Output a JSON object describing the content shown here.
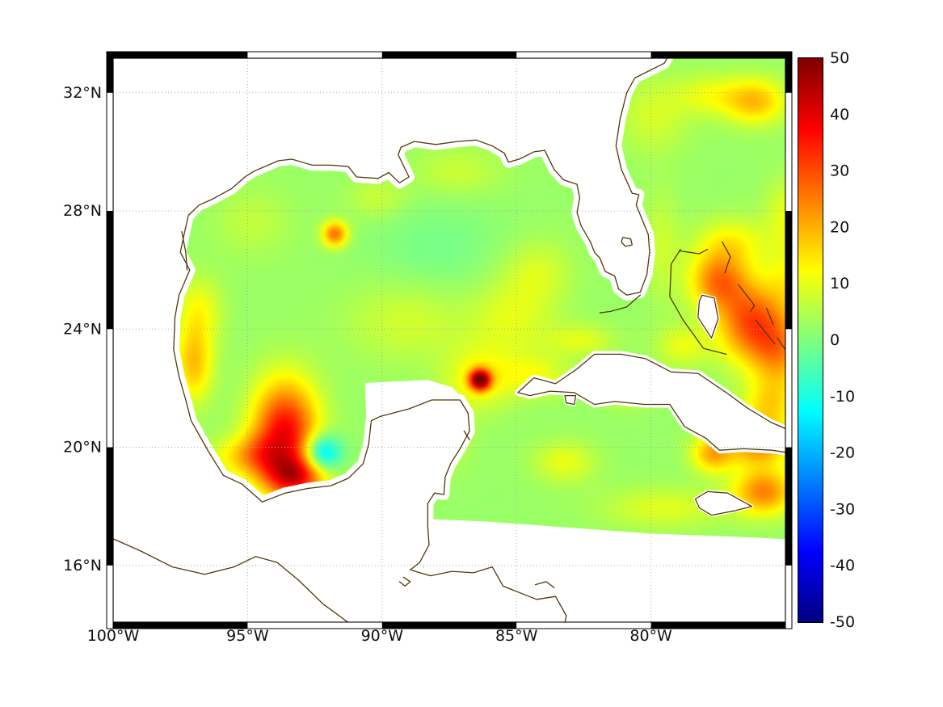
{
  "axes": {
    "x_ticks": [
      {
        "label": "100°W",
        "lon": -100
      },
      {
        "label": "95°W",
        "lon": -95
      },
      {
        "label": "90°W",
        "lon": -90
      },
      {
        "label": "85°W",
        "lon": -85
      },
      {
        "label": "80°W",
        "lon": -80
      }
    ],
    "y_ticks": [
      {
        "label": "32°N",
        "lat": 32
      },
      {
        "label": "28°N",
        "lat": 28
      },
      {
        "label": "24°N",
        "lat": 24
      },
      {
        "label": "20°N",
        "lat": 20
      },
      {
        "label": "16°N",
        "lat": 16
      }
    ]
  },
  "colorbar": {
    "vmin": -50,
    "vmax": 50,
    "tick_values": [
      50,
      40,
      30,
      20,
      10,
      0,
      -10,
      -20,
      -30,
      -40,
      -50
    ],
    "tick_labels": [
      "50",
      "40",
      "30",
      "20",
      "10",
      "0",
      "-10",
      "-20",
      "-30",
      "-40",
      "-50"
    ],
    "colormap": "jet",
    "position": "right"
  },
  "chart_data": {
    "type": "heatmap",
    "title": "",
    "xlabel": "",
    "ylabel": "",
    "projection": "linear lon/lat degrees",
    "lon_range": [
      -100,
      -75
    ],
    "lat_range": [
      14.08,
      33.17
    ],
    "x_tick_lons": [
      -100,
      -95,
      -90,
      -85,
      -80
    ],
    "y_tick_lats": [
      32,
      28,
      24,
      20,
      16
    ],
    "grid": "dotted",
    "vmin": -50,
    "vmax": 50,
    "base_value": 2.5,
    "features": [
      {
        "name": "campeche-warm-eddy",
        "lon": -93.6,
        "lat": 20.4,
        "sx": 0.85,
        "sy": 1.25,
        "amp": 36
      },
      {
        "name": "campeche-south-warm",
        "lon": -93.2,
        "lat": 18.95,
        "sx": 0.8,
        "sy": 0.5,
        "amp": 26
      },
      {
        "name": "campeche-west-warm",
        "lon": -94.6,
        "lat": 19.7,
        "sx": 0.6,
        "sy": 0.5,
        "amp": 12
      },
      {
        "name": "campeche-cold-patch",
        "lon": -92.25,
        "lat": 19.75,
        "sx": 0.5,
        "sy": 0.45,
        "amp": -24
      },
      {
        "name": "small-warm-eddy-nw-gulf",
        "lon": -91.75,
        "lat": 27.2,
        "sx": 0.33,
        "sy": 0.3,
        "amp": 24
      },
      {
        "name": "tamaulipas-coastal-warm",
        "lon": -97.0,
        "lat": 22.8,
        "sx": 0.5,
        "sy": 0.9,
        "amp": 16
      },
      {
        "name": "texas-coastal-warm",
        "lon": -96.8,
        "lat": 24.6,
        "sx": 0.6,
        "sy": 0.8,
        "amp": 9
      },
      {
        "name": "yucatan-channel-warm-core",
        "lon": -86.35,
        "lat": 22.25,
        "sx": 0.27,
        "sy": 0.24,
        "amp": 46
      },
      {
        "name": "yucatan-channel-warm-halo",
        "lon": -86.4,
        "lat": 22.3,
        "sx": 0.9,
        "sy": 0.75,
        "amp": 10
      },
      {
        "name": "mid-gulf-warm-band",
        "lon": -89.0,
        "lat": 24.3,
        "sx": 1.6,
        "sy": 1.0,
        "amp": 6
      },
      {
        "name": "loop-current-warm",
        "lon": -85.2,
        "lat": 24.3,
        "sx": 1.1,
        "sy": 1.0,
        "amp": 7
      },
      {
        "name": "west-florida-warm",
        "lon": -84.2,
        "lat": 25.9,
        "sx": 0.9,
        "sy": 0.8,
        "amp": 6
      },
      {
        "name": "central-gulf-cool",
        "lon": -88.0,
        "lat": 26.6,
        "sx": 1.8,
        "sy": 1.3,
        "amp": -3.5
      },
      {
        "name": "nw-shelf-warm",
        "lon": -94.8,
        "lat": 27.6,
        "sx": 1.0,
        "sy": 0.8,
        "amp": 4
      },
      {
        "name": "north-gulf-warm",
        "lon": -87.2,
        "lat": 29.3,
        "sx": 1.2,
        "sy": 0.6,
        "amp": 5
      },
      {
        "name": "louisiana-shelf-warm",
        "lon": -90.2,
        "lat": 28.4,
        "sx": 0.8,
        "sy": 0.5,
        "amp": 5
      },
      {
        "name": "bahamas-warm-1",
        "lon": -77.5,
        "lat": 25.6,
        "sx": 0.75,
        "sy": 0.7,
        "amp": 22
      },
      {
        "name": "bahamas-warm-2",
        "lon": -76.3,
        "lat": 24.2,
        "sx": 0.85,
        "sy": 0.95,
        "amp": 26
      },
      {
        "name": "bahamas-warm-3",
        "lon": -75.2,
        "lat": 23.2,
        "sx": 0.7,
        "sy": 0.9,
        "amp": 18
      },
      {
        "name": "nw-providence-warm",
        "lon": -77.0,
        "lat": 26.9,
        "sx": 0.9,
        "sy": 0.6,
        "amp": 10
      },
      {
        "name": "atlantic-ne-warm",
        "lon": -76.1,
        "lat": 31.7,
        "sx": 0.8,
        "sy": 0.55,
        "amp": 16
      },
      {
        "name": "atlantic-ne-warm-2",
        "lon": -77.8,
        "lat": 31.9,
        "sx": 0.9,
        "sy": 0.5,
        "amp": 8
      },
      {
        "name": "gulf-stream-warm",
        "lon": -79.9,
        "lat": 31.2,
        "sx": 0.9,
        "sy": 0.9,
        "amp": 6
      },
      {
        "name": "se-cuba-warm-1",
        "lon": -76.0,
        "lat": 20.1,
        "sx": 0.8,
        "sy": 0.55,
        "amp": 22
      },
      {
        "name": "se-cuba-warm-2",
        "lon": -77.7,
        "lat": 19.75,
        "sx": 0.55,
        "sy": 0.45,
        "amp": 18
      },
      {
        "name": "ne-cuba-warm",
        "lon": -75.6,
        "lat": 21.4,
        "sx": 0.7,
        "sy": 0.6,
        "amp": 12
      },
      {
        "name": "southeast-bottom-warm",
        "lon": -75.8,
        "lat": 18.45,
        "sx": 0.8,
        "sy": 0.55,
        "amp": 22
      },
      {
        "name": "south-cuba-warm",
        "lon": -80.9,
        "lat": 21.9,
        "sx": 0.6,
        "sy": 0.4,
        "amp": 8
      },
      {
        "name": "west-cuba-band",
        "lon": -84.3,
        "lat": 22.4,
        "sx": 0.9,
        "sy": 0.5,
        "amp": 8
      },
      {
        "name": "florida-straits-warm",
        "lon": -82.6,
        "lat": 23.6,
        "sx": 0.9,
        "sy": 0.4,
        "amp": 7
      },
      {
        "name": "gulf-stream-channel",
        "lon": -79.6,
        "lat": 26.8,
        "sx": 0.5,
        "sy": 1.3,
        "amp": 5
      },
      {
        "name": "cayman-warm",
        "lon": -83.2,
        "lat": 19.45,
        "sx": 0.8,
        "sy": 0.5,
        "amp": 8
      },
      {
        "name": "jamaica-band-warm",
        "lon": -79.5,
        "lat": 17.9,
        "sx": 1.6,
        "sy": 0.5,
        "amp": 7
      },
      {
        "name": "right-edge-warm",
        "lon": -74.9,
        "lat": 25.6,
        "sx": 0.6,
        "sy": 0.8,
        "amp": 8
      },
      {
        "name": "cay-sal-warm",
        "lon": -78.8,
        "lat": 23.4,
        "sx": 0.7,
        "sy": 0.5,
        "amp": 8
      },
      {
        "name": "yucatan-east-warm",
        "lon": -87.6,
        "lat": 20.4,
        "sx": 0.6,
        "sy": 0.8,
        "amp": 6
      },
      {
        "name": "campeche-sw-coast-warm",
        "lon": -95.6,
        "lat": 19.6,
        "sx": 0.7,
        "sy": 0.5,
        "amp": 8
      },
      {
        "name": "atlantic-right-edge-warm",
        "lon": -74.9,
        "lat": 27.8,
        "sx": 0.6,
        "sy": 0.9,
        "amp": 8
      }
    ]
  },
  "map": {
    "coast_color": "#53380a",
    "land_fill": "#ffffff",
    "grid_color": "#aaaaaa",
    "frame_color": "#000000",
    "background": "#ffffff",
    "mainland": [
      [
        -100.5,
        33.5
      ],
      [
        -79.2,
        33.5
      ],
      [
        -79.5,
        33.0
      ],
      [
        -80.6,
        32.5
      ],
      [
        -80.9,
        32.0
      ],
      [
        -81.15,
        31.1
      ],
      [
        -81.3,
        30.2
      ],
      [
        -81.1,
        29.4
      ],
      [
        -80.7,
        28.6
      ],
      [
        -80.45,
        28.55
      ],
      [
        -80.55,
        28.2
      ],
      [
        -80.1,
        27.2
      ],
      [
        -80.05,
        26.6
      ],
      [
        -80.15,
        25.85
      ],
      [
        -80.4,
        25.25
      ],
      [
        -80.9,
        25.15
      ],
      [
        -81.2,
        25.35
      ],
      [
        -81.35,
        25.8
      ],
      [
        -81.7,
        25.95
      ],
      [
        -81.9,
        26.4
      ],
      [
        -82.1,
        26.6
      ],
      [
        -82.25,
        26.95
      ],
      [
        -82.6,
        27.5
      ],
      [
        -82.75,
        27.95
      ],
      [
        -82.65,
        28.45
      ],
      [
        -82.75,
        28.9
      ],
      [
        -83.25,
        29.05
      ],
      [
        -83.6,
        29.4
      ],
      [
        -83.95,
        30.05
      ],
      [
        -84.35,
        30.0
      ],
      [
        -84.9,
        29.75
      ],
      [
        -85.3,
        29.65
      ],
      [
        -85.45,
        29.95
      ],
      [
        -85.9,
        30.2
      ],
      [
        -86.5,
        30.4
      ],
      [
        -87.2,
        30.35
      ],
      [
        -88.0,
        30.25
      ],
      [
        -88.8,
        30.35
      ],
      [
        -89.3,
        30.15
      ],
      [
        -89.4,
        29.9
      ],
      [
        -89.0,
        29.15
      ],
      [
        -89.35,
        28.95
      ],
      [
        -89.75,
        29.3
      ],
      [
        -90.15,
        29.1
      ],
      [
        -90.95,
        29.15
      ],
      [
        -91.25,
        29.5
      ],
      [
        -91.9,
        29.55
      ],
      [
        -92.6,
        29.55
      ],
      [
        -93.35,
        29.75
      ],
      [
        -93.85,
        29.7
      ],
      [
        -94.75,
        29.35
      ],
      [
        -95.1,
        29.15
      ],
      [
        -95.6,
        28.75
      ],
      [
        -96.3,
        28.4
      ],
      [
        -96.8,
        28.2
      ],
      [
        -97.2,
        27.85
      ],
      [
        -97.35,
        27.25
      ],
      [
        -97.5,
        26.6
      ],
      [
        -97.15,
        26.0
      ],
      [
        -97.55,
        25.15
      ],
      [
        -97.7,
        24.4
      ],
      [
        -97.75,
        23.3
      ],
      [
        -97.55,
        22.4
      ],
      [
        -97.3,
        21.6
      ],
      [
        -97.1,
        20.9
      ],
      [
        -96.45,
        19.85
      ],
      [
        -95.9,
        19.05
      ],
      [
        -95.2,
        18.75
      ],
      [
        -94.45,
        18.15
      ],
      [
        -93.6,
        18.45
      ],
      [
        -92.8,
        18.6
      ],
      [
        -91.9,
        18.7
      ],
      [
        -91.25,
        18.95
      ],
      [
        -90.7,
        19.45
      ],
      [
        -90.5,
        20.1
      ],
      [
        -90.4,
        20.9
      ],
      [
        -90.05,
        21.05
      ],
      [
        -89.0,
        21.3
      ],
      [
        -88.15,
        21.6
      ],
      [
        -87.1,
        21.6
      ],
      [
        -86.8,
        21.15
      ],
      [
        -86.75,
        20.55
      ],
      [
        -87.1,
        19.95
      ],
      [
        -87.45,
        19.45
      ],
      [
        -87.65,
        19.0
      ],
      [
        -87.7,
        18.4
      ],
      [
        -88.05,
        18.45
      ],
      [
        -88.3,
        18.1
      ],
      [
        -88.3,
        17.3
      ],
      [
        -88.25,
        16.7
      ],
      [
        -88.6,
        16.1
      ],
      [
        -88.95,
        15.85
      ],
      [
        -88.2,
        15.65
      ],
      [
        -87.4,
        15.8
      ],
      [
        -86.6,
        15.75
      ],
      [
        -85.9,
        15.95
      ],
      [
        -85.5,
        15.3
      ],
      [
        -84.95,
        15.1
      ],
      [
        -84.25,
        14.85
      ],
      [
        -83.55,
        14.95
      ],
      [
        -83.15,
        14.3
      ],
      [
        -83.3,
        13.6
      ],
      [
        -90.6,
        13.6
      ],
      [
        -91.3,
        14.1
      ],
      [
        -92.2,
        14.7
      ],
      [
        -93.1,
        15.5
      ],
      [
        -93.9,
        16.1
      ],
      [
        -94.7,
        16.3
      ],
      [
        -95.5,
        15.95
      ],
      [
        -96.6,
        15.7
      ],
      [
        -97.8,
        15.95
      ],
      [
        -99.0,
        16.5
      ],
      [
        -100.5,
        17.1
      ]
    ],
    "coast_segments": [
      [
        1,
        102
      ],
      [
        102,
        113
      ]
    ],
    "islands": {
      "cuba": [
        [
          -84.95,
          21.85
        ],
        [
          -84.35,
          22.35
        ],
        [
          -83.55,
          22.15
        ],
        [
          -82.75,
          22.65
        ],
        [
          -82.1,
          23.15
        ],
        [
          -81.1,
          23.15
        ],
        [
          -80.2,
          23.0
        ],
        [
          -79.25,
          22.55
        ],
        [
          -78.25,
          22.5
        ],
        [
          -77.2,
          21.85
        ],
        [
          -76.45,
          21.35
        ],
        [
          -75.55,
          20.85
        ],
        [
          -74.8,
          20.55
        ],
        [
          -74.8,
          19.8
        ],
        [
          -75.5,
          19.9
        ],
        [
          -76.55,
          19.95
        ],
        [
          -77.45,
          19.9
        ],
        [
          -77.95,
          20.3
        ],
        [
          -78.75,
          20.7
        ],
        [
          -79.3,
          21.45
        ],
        [
          -80.25,
          21.45
        ],
        [
          -81.35,
          21.55
        ],
        [
          -82.1,
          21.45
        ],
        [
          -82.85,
          21.85
        ],
        [
          -83.75,
          21.9
        ],
        [
          -84.5,
          21.75
        ]
      ],
      "jamaica": [
        [
          -78.35,
          18.25
        ],
        [
          -77.9,
          18.5
        ],
        [
          -77.15,
          18.45
        ],
        [
          -76.25,
          18.0
        ],
        [
          -76.9,
          17.85
        ],
        [
          -77.75,
          17.7
        ],
        [
          -78.2,
          17.95
        ]
      ],
      "andros": [
        [
          -78.1,
          25.15
        ],
        [
          -77.65,
          25.05
        ],
        [
          -77.5,
          24.35
        ],
        [
          -77.75,
          23.7
        ],
        [
          -78.25,
          24.4
        ],
        [
          -78.2,
          24.95
        ]
      ],
      "isle_of_youth": [
        [
          -83.2,
          21.75
        ],
        [
          -82.8,
          21.75
        ],
        [
          -82.85,
          21.45
        ],
        [
          -83.15,
          21.5
        ]
      ],
      "lake_okeechobee": [
        [
          -81.05,
          27.1
        ],
        [
          -80.75,
          27.05
        ],
        [
          -80.7,
          26.85
        ],
        [
          -80.95,
          26.8
        ],
        [
          -81.1,
          26.95
        ]
      ]
    },
    "island_lines": {
      "grand_bahama": [
        [
          -78.95,
          26.65
        ],
        [
          -78.2,
          26.55
        ],
        [
          -77.9,
          26.7
        ]
      ],
      "abaco": [
        [
          -77.35,
          26.95
        ],
        [
          -77.05,
          26.45
        ],
        [
          -77.25,
          25.9
        ]
      ],
      "eleuthera": [
        [
          -76.75,
          25.5
        ],
        [
          -76.15,
          24.8
        ],
        [
          -76.3,
          24.6
        ]
      ],
      "cat_island": [
        [
          -75.7,
          24.7
        ],
        [
          -75.45,
          24.15
        ]
      ],
      "long_island": [
        [
          -75.3,
          23.7
        ],
        [
          -74.85,
          23.1
        ]
      ],
      "exuma": [
        [
          -76.1,
          24.3
        ],
        [
          -75.4,
          23.5
        ]
      ],
      "bahama_bank": [
        [
          -78.9,
          26.7
        ],
        [
          -79.25,
          26.2
        ],
        [
          -79.3,
          25.1
        ],
        [
          -78.8,
          24.3
        ],
        [
          -78.05,
          23.35
        ],
        [
          -77.2,
          23.15
        ]
      ],
      "florida_keys": [
        [
          -80.4,
          25.15
        ],
        [
          -80.9,
          24.75
        ],
        [
          -81.5,
          24.6
        ],
        [
          -81.9,
          24.55
        ]
      ],
      "texas_lagoon": [
        [
          -97.45,
          27.3
        ],
        [
          -97.3,
          26.6
        ],
        [
          -97.25,
          26.0
        ]
      ],
      "cozumel": [
        [
          -86.95,
          20.55
        ],
        [
          -86.75,
          20.25
        ]
      ],
      "caratasca": [
        [
          -84.3,
          15.35
        ],
        [
          -83.9,
          15.45
        ],
        [
          -83.6,
          15.25
        ]
      ],
      "izabal": [
        [
          -89.2,
          15.6
        ],
        [
          -88.95,
          15.45
        ],
        [
          -89.15,
          15.3
        ],
        [
          -89.35,
          15.45
        ]
      ]
    },
    "nodata_regions": {
      "pacific": [
        [
          -100.5,
          17.1
        ],
        [
          -99.0,
          16.5
        ],
        [
          -97.8,
          15.95
        ],
        [
          -96.6,
          15.7
        ],
        [
          -95.5,
          15.95
        ],
        [
          -94.7,
          16.3
        ],
        [
          -93.9,
          16.1
        ],
        [
          -93.1,
          15.5
        ],
        [
          -92.2,
          14.7
        ],
        [
          -91.3,
          14.1
        ],
        [
          -90.6,
          13.6
        ],
        [
          -100.5,
          13.6
        ]
      ],
      "caribbean_south": [
        [
          -88.4,
          17.55
        ],
        [
          -86.0,
          17.45
        ],
        [
          -83.0,
          17.25
        ],
        [
          -80.0,
          17.05
        ],
        [
          -77.0,
          16.95
        ],
        [
          -74.7,
          16.85
        ],
        [
          -74.7,
          13.6
        ],
        [
          -88.4,
          13.6
        ]
      ],
      "yucatan_shelf": [
        [
          -90.55,
          20.8
        ],
        [
          -90.6,
          22.15
        ],
        [
          -89.5,
          22.2
        ],
        [
          -88.3,
          22.25
        ],
        [
          -87.4,
          22.0
        ],
        [
          -86.82,
          21.45
        ],
        [
          -86.85,
          21.1
        ],
        [
          -87.3,
          21.55
        ],
        [
          -88.2,
          21.5
        ],
        [
          -89.0,
          21.25
        ],
        [
          -90.0,
          21.0
        ]
      ]
    }
  }
}
